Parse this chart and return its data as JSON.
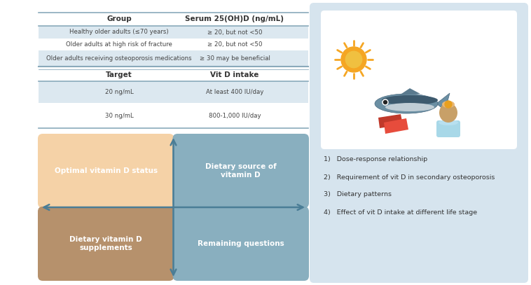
{
  "outer_bg": "#ffffff",
  "table1_headers": [
    "Group",
    "Serum 25(OH)D (ng/mL)"
  ],
  "table1_rows": [
    [
      "Healthy older adults (≤70 years)",
      "≥ 20, but not <50"
    ],
    [
      "Older adults at high risk of fracture",
      "≥ 20, but not <50"
    ],
    [
      "Older adults receiving osteoporosis medications",
      "≥ 30 may be beneficial"
    ]
  ],
  "table2_headers": [
    "Target",
    "Vit D intake"
  ],
  "table2_rows": [
    [
      "20 ng/mL",
      "At least 400 IU/day"
    ],
    [
      "30 ng/mL",
      "800-1,000 IU/day"
    ]
  ],
  "row_color_odd": "#dce8f0",
  "row_color_even": "#ffffff",
  "quad_labels": [
    "Optimal vitamin D status",
    "Dietary source of\nvitamin D",
    "Dietary vitamin D\nsupplements",
    "Remaining questions"
  ],
  "quad_colors": [
    "#f5cfa0",
    "#7fa8ba",
    "#b08860",
    "#7fa8ba"
  ],
  "right_panel_bg": "#d6e4ee",
  "right_panel_card_bg": "#ffffff",
  "right_items": [
    "1)   Dose-response relationship",
    "2)   Requirement of vit D in secondary osteoporosis",
    "3)   Dietary patterns",
    "4)   Effect of vit D intake at different life stage"
  ],
  "arrow_color": "#4a7d96",
  "line_color": "#8aaabb",
  "sun_color": "#f5a623",
  "sun_ray_color": "#f5a623"
}
